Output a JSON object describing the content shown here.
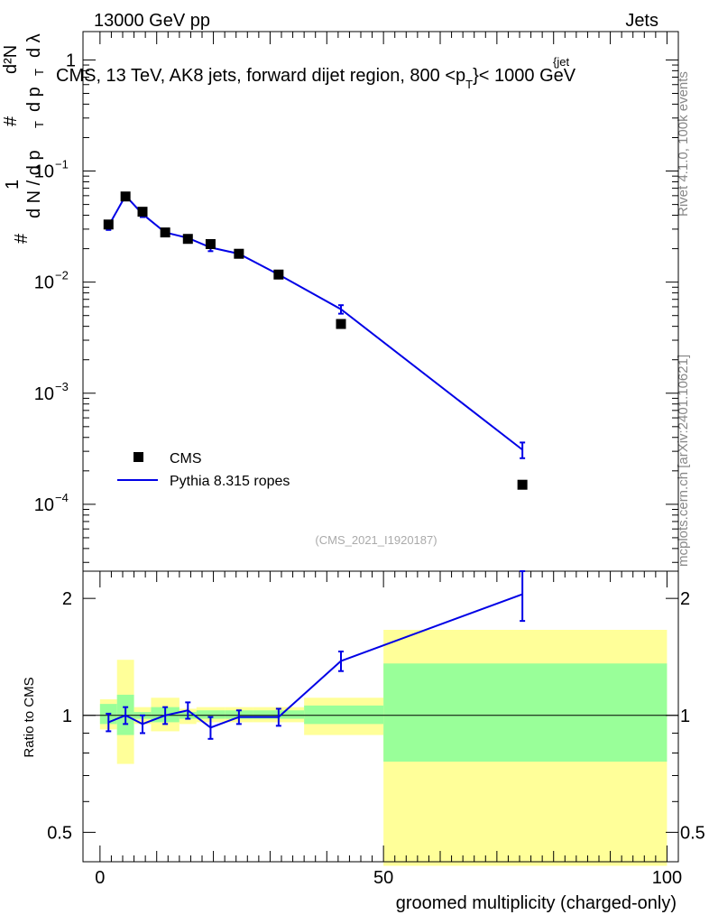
{
  "header": {
    "energy_label": "13000 GeV pp",
    "category_label": "Jets",
    "title": "CMS, 13 TeV, AK8 jets, forward dijet region, 800 <p",
    "title_sub_T": "T",
    "title_sup_jet": "{jet",
    "title_end": "}< 1000 GeV"
  },
  "side": {
    "rivet_label": "Rivet 4.1.0,  100k events",
    "mcplots_label": "mcplots.cern.ch [arXiv:2401.10621]"
  },
  "analysis_id": "(CMS_2021_I1920187)",
  "legend": {
    "data_label": "CMS",
    "mc_label": "Pythia 8.315 ropes"
  },
  "colors": {
    "mc": "#0000e6",
    "data": "#000000",
    "band_stat": "#99ff99",
    "band_total": "#ffff99"
  },
  "chart_data": [
    {
      "type": "scatter",
      "name": "main",
      "yscale": "log",
      "ylabel": "# 1 / dN / dp_T  #  d²N / dp_T dλ",
      "ylabel_parts": {
        "num_hash": "#",
        "one": "1",
        "dn_dpt": "d N / d p",
        "hash2": "#",
        "d2n": "d²N",
        "dpt": "d p",
        "dlam": "d λ",
        "sub_T": "T"
      },
      "xlim": [
        -3,
        102
      ],
      "ylim": [
        2.5e-05,
        1.8
      ],
      "yticks": [
        {
          "v": 0.1,
          "base": "10",
          "exp": "−1"
        },
        {
          "v": 0.01,
          "base": "10",
          "exp": "−2"
        },
        {
          "v": 0.001,
          "base": "10",
          "exp": "−3"
        },
        {
          "v": 0.0001,
          "base": "10",
          "exp": "−4"
        }
      ],
      "yticks_plain": [
        {
          "v": 1,
          "label": "1"
        }
      ],
      "series": [
        {
          "name": "CMS",
          "x": [
            1.5,
            4.5,
            7.5,
            11.5,
            15.5,
            19.5,
            24.5,
            31.5,
            42.5,
            74.5
          ],
          "y": [
            0.033,
            0.059,
            0.043,
            0.028,
            0.0245,
            0.022,
            0.018,
            0.0117,
            0.0042,
            0.00015
          ]
        },
        {
          "name": "Pythia 8.315 ropes",
          "x": [
            1.5,
            4.5,
            7.5,
            11.5,
            15.5,
            19.5,
            24.5,
            31.5,
            42.5,
            74.5
          ],
          "y": [
            0.032,
            0.06,
            0.041,
            0.028,
            0.025,
            0.0205,
            0.018,
            0.0117,
            0.0057,
            0.00031
          ],
          "yerr": [
            0.0025,
            0.003,
            0.0025,
            0.0012,
            0.001,
            0.0015,
            0.0008,
            0.0005,
            0.0005,
            5e-05
          ]
        }
      ]
    },
    {
      "type": "scatter",
      "name": "ratio",
      "yscale": "log",
      "ylabel": "Ratio to CMS",
      "xlabel": "groomed multiplicity (charged-only)",
      "xlim": [
        -3,
        102
      ],
      "ylim": [
        0.42,
        2.35
      ],
      "xticks": [
        0,
        50,
        100
      ],
      "yticks": [
        0.5,
        1,
        2
      ],
      "bands": {
        "edges": [
          0,
          3,
          6,
          9,
          14,
          17,
          22,
          27,
          36,
          50,
          100
        ],
        "stat_lo": [
          0.95,
          0.89,
          0.98,
          0.96,
          0.98,
          0.98,
          0.98,
          0.98,
          0.95,
          0.76
        ],
        "stat_hi": [
          1.07,
          1.13,
          1.02,
          1.05,
          1.02,
          1.03,
          1.03,
          1.03,
          1.06,
          1.36
        ],
        "tot_lo": [
          0.92,
          0.75,
          0.95,
          0.91,
          0.95,
          0.96,
          0.96,
          0.96,
          0.89,
          0.41
        ],
        "tot_hi": [
          1.1,
          1.39,
          1.05,
          1.11,
          1.04,
          1.05,
          1.05,
          1.05,
          1.11,
          1.66
        ]
      },
      "series": [
        {
          "name": "Pythia/CMS",
          "x": [
            1.5,
            4.5,
            7.5,
            11.5,
            15.5,
            19.5,
            24.5,
            31.5,
            42.5,
            74.5
          ],
          "y": [
            0.96,
            1.0,
            0.95,
            1.0,
            1.03,
            0.93,
            0.99,
            0.99,
            1.38,
            2.05
          ],
          "yerr": [
            0.05,
            0.05,
            0.05,
            0.05,
            0.05,
            0.06,
            0.04,
            0.05,
            0.08,
            0.3
          ]
        }
      ]
    }
  ]
}
